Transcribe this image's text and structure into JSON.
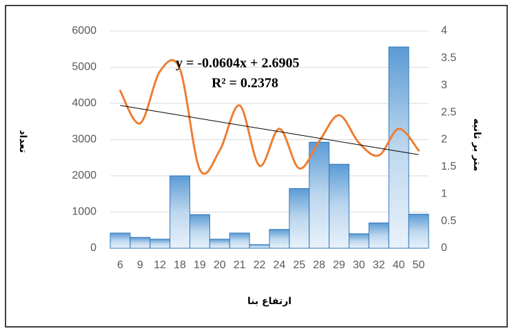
{
  "chart_data": {
    "type": "bar_line",
    "categories": [
      "6",
      "9",
      "12",
      "18",
      "19",
      "20",
      "21",
      "22",
      "24",
      "25",
      "28",
      "29",
      "30",
      "32",
      "40",
      "50"
    ],
    "series": [
      {
        "name": "تعداد",
        "type": "bar",
        "color": "#9dc3e6",
        "values": [
          420,
          300,
          250,
          2000,
          930,
          250,
          420,
          100,
          520,
          1650,
          2930,
          2320,
          400,
          700,
          5560,
          940
        ]
      },
      {
        "name": "متر بر ثانیه",
        "type": "line",
        "axis": "y2",
        "color": "#ed7d31",
        "values": [
          2.9,
          2.3,
          3.26,
          3.3,
          1.45,
          1.8,
          2.63,
          1.52,
          2.2,
          1.47,
          1.97,
          2.45,
          1.94,
          1.71,
          2.2,
          1.8
        ]
      }
    ],
    "trendline": {
      "slope": -0.0604,
      "intercept": 2.6905,
      "equation": "y = -0.0604x + 2.6905",
      "r2_label": "R² = 0.2378"
    },
    "xlabel": "ارتفاع بنا",
    "ylabel": "تعداد",
    "y2label": "متر بر ثانیه",
    "ylim": [
      0,
      6000
    ],
    "yticks": [
      0,
      1000,
      2000,
      3000,
      4000,
      5000,
      6000
    ],
    "y2lim": [
      0,
      4
    ],
    "y2ticks": [
      0,
      0.5,
      1,
      1.5,
      2,
      2.5,
      3,
      3.5,
      4
    ],
    "grid": true
  }
}
